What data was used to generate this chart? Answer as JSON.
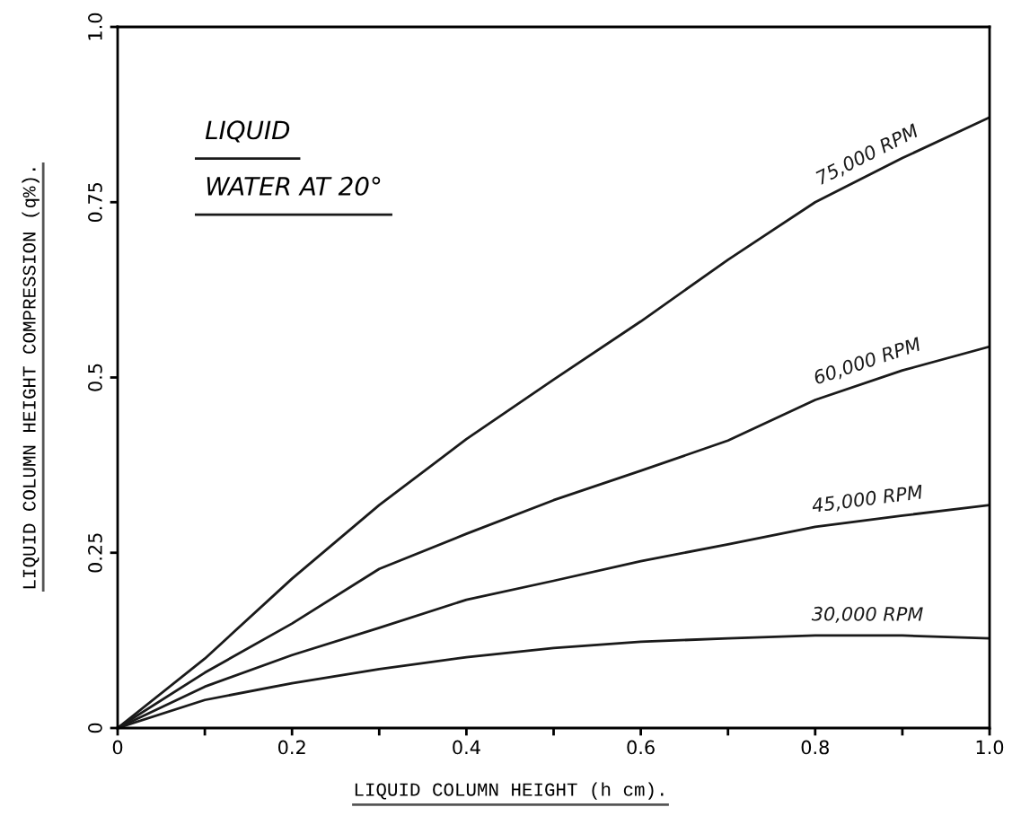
{
  "chart_data": {
    "type": "line",
    "xlabel": "LIQUID COLUMN HEIGHT (h cm).",
    "ylabel": "LIQUID COLUMN HEIGHT COMPRESSION (q%).",
    "annotations": [
      "LIQUID",
      "WATER AT 20°"
    ],
    "x": [
      0,
      0.1,
      0.2,
      0.3,
      0.4,
      0.5,
      0.6,
      0.7,
      0.8,
      0.9,
      1.0
    ],
    "series": [
      {
        "name": "75,000 RPM",
        "color": "#1a1a1a",
        "values": [
          0,
          0.099,
          0.213,
          0.318,
          0.412,
          0.497,
          0.58,
          0.668,
          0.75,
          0.813,
          0.871
        ]
      },
      {
        "name": "60,000 RPM",
        "color": "#1a1a1a",
        "values": [
          0,
          0.079,
          0.149,
          0.227,
          0.277,
          0.325,
          0.367,
          0.41,
          0.468,
          0.51,
          0.544
        ]
      },
      {
        "name": "45,000 RPM",
        "color": "#1a1a1a",
        "values": [
          0,
          0.059,
          0.104,
          0.143,
          0.183,
          0.21,
          0.238,
          0.262,
          0.287,
          0.303,
          0.318
        ]
      },
      {
        "name": "30,000 RPM",
        "color": "#1a1a1a",
        "values": [
          0,
          0.04,
          0.064,
          0.084,
          0.101,
          0.114,
          0.123,
          0.128,
          0.132,
          0.132,
          0.128
        ]
      }
    ],
    "xlim": [
      0,
      1.0
    ],
    "ylim": [
      0,
      1.0
    ],
    "xticks": [
      0,
      {
        "value": 0.1,
        "label": null
      },
      0.2,
      {
        "value": 0.3,
        "label": null
      },
      0.4,
      {
        "value": 0.5,
        "label": null
      },
      0.6,
      {
        "value": 0.7,
        "label": null
      },
      0.8,
      {
        "value": 0.9,
        "label": null
      },
      {
        "value": 1,
        "label": "1.0"
      }
    ],
    "yticks": [
      0,
      0.25,
      0.5,
      0.75,
      {
        "value": 1,
        "label": "1.0"
      }
    ],
    "grid": false,
    "legend": false,
    "marker": "none",
    "line_style": "solid"
  }
}
